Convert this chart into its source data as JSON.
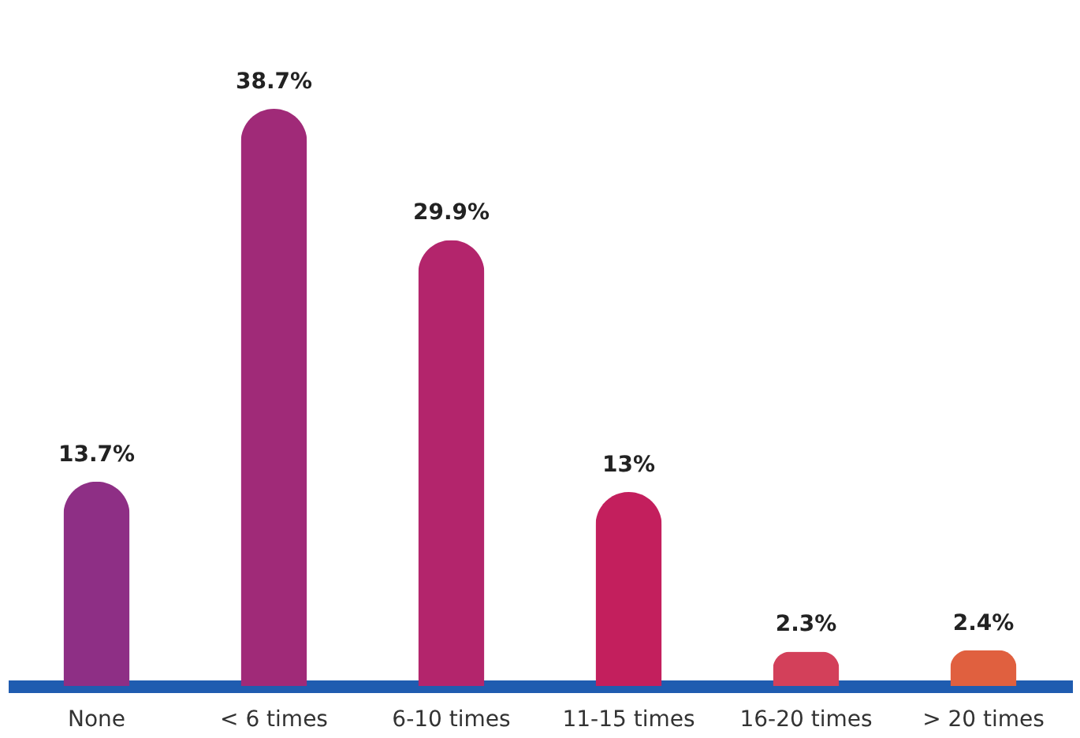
{
  "chart_data": {
    "type": "bar",
    "categories": [
      "None",
      "< 6 times",
      "6-10 times",
      "11-15 times",
      "16-20 times",
      "> 20 times"
    ],
    "values": [
      13.7,
      38.7,
      29.9,
      13,
      2.3,
      2.4
    ],
    "value_labels": [
      "13.7%",
      "38.7%",
      "29.9%",
      "13%",
      "2.3%",
      "2.4%"
    ],
    "colors": [
      "#8e2f85",
      "#a02a78",
      "#b3256c",
      "#c31f5d",
      "#d3405a",
      "#e0603f"
    ],
    "tick_labels": "x",
    "grid": false,
    "legend": false
  }
}
